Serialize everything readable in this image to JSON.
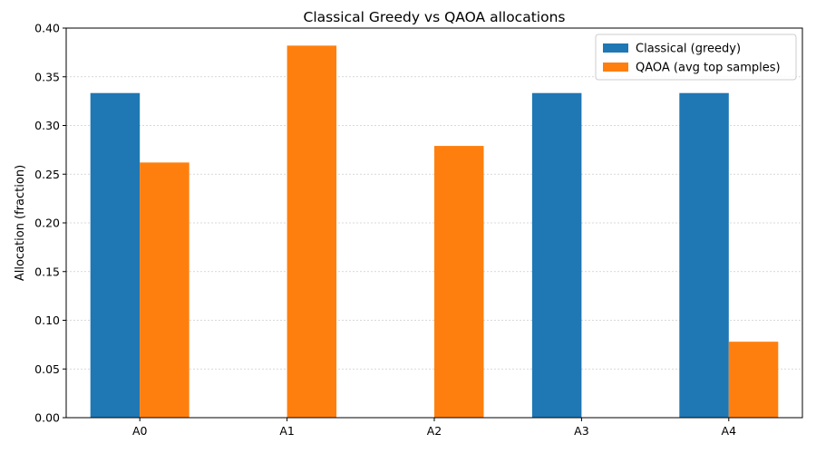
{
  "chart_data": {
    "type": "bar",
    "title": "Classical Greedy vs QAOA allocations",
    "xlabel": "",
    "ylabel": "Allocation (fraction)",
    "categories": [
      "A0",
      "A1",
      "A2",
      "A3",
      "A4"
    ],
    "series": [
      {
        "name": "Classical (greedy)",
        "color": "#1f77b4",
        "values": [
          0.3333,
          0.0,
          0.0,
          0.3333,
          0.3333
        ]
      },
      {
        "name": "QAOA (avg top samples)",
        "color": "#ff7f0e",
        "values": [
          0.262,
          0.382,
          0.279,
          0.0,
          0.078
        ]
      }
    ],
    "ylim": [
      0,
      0.4
    ],
    "yticks": [
      "0.00",
      "0.05",
      "0.10",
      "0.15",
      "0.20",
      "0.25",
      "0.30",
      "0.35",
      "0.40"
    ],
    "grid": "y",
    "legend_position": "top-right"
  }
}
